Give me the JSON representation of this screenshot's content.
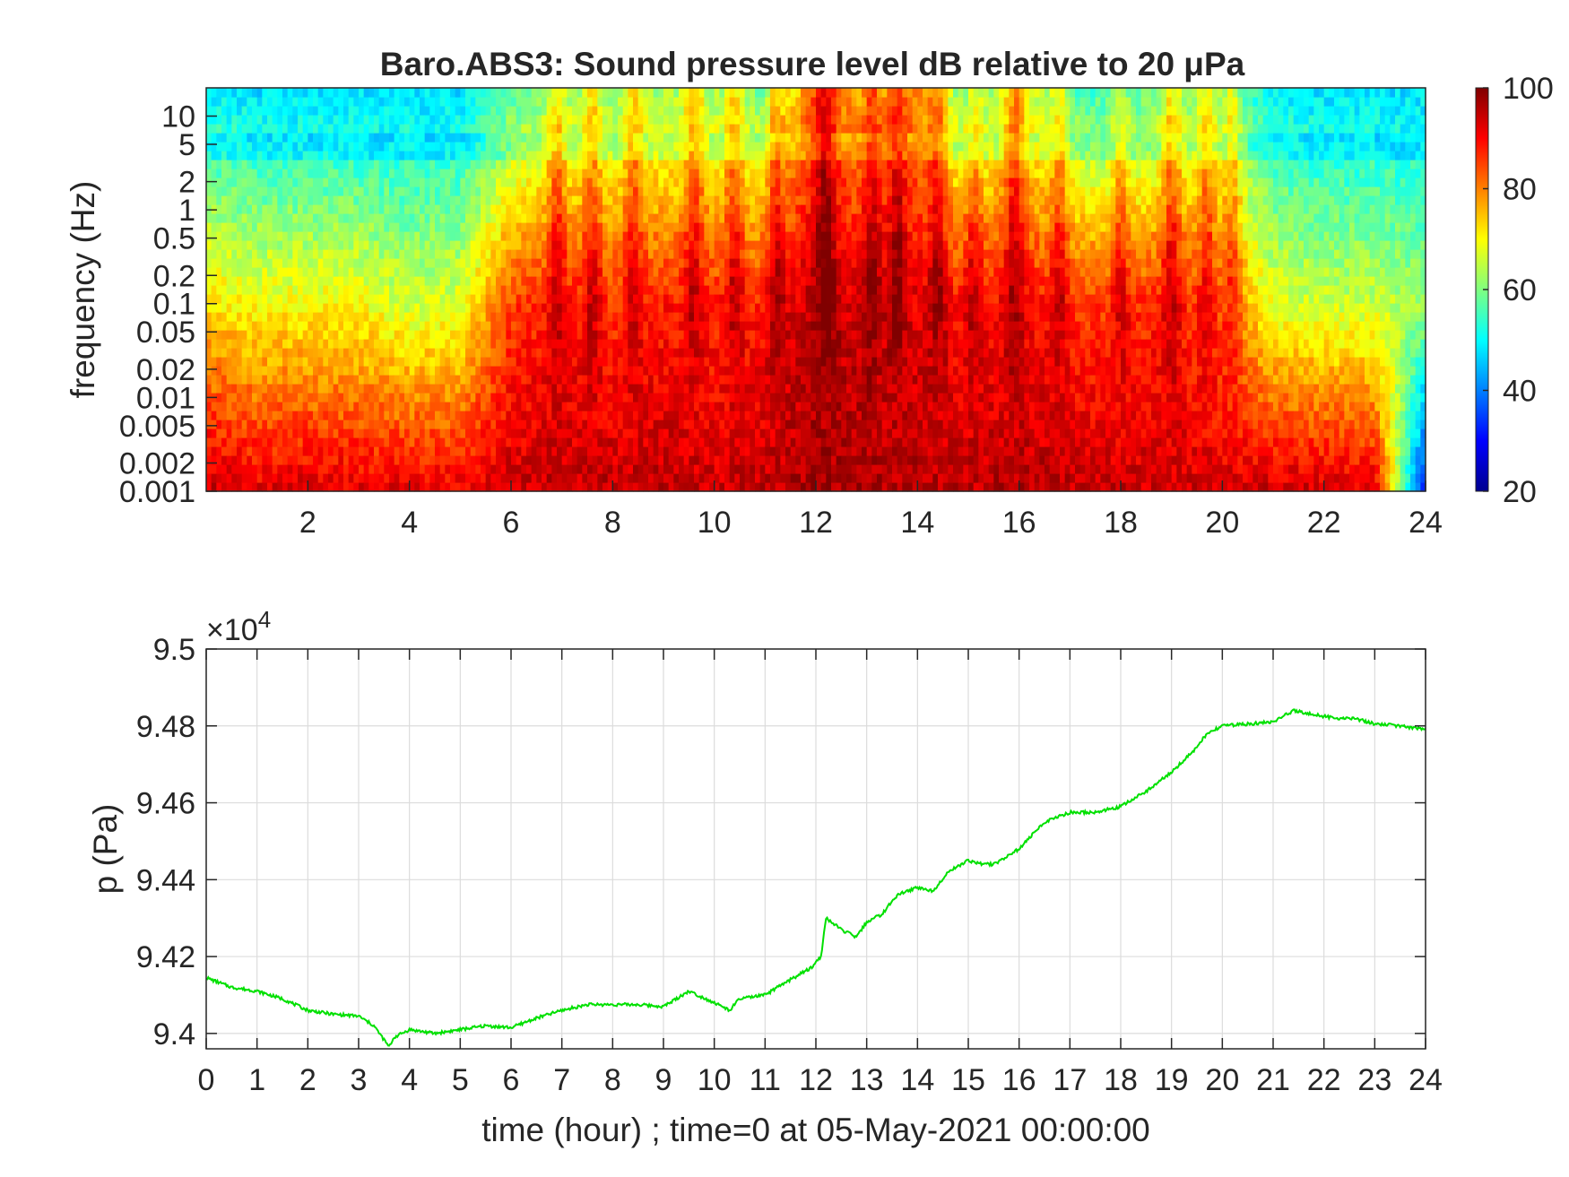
{
  "chart_data": [
    {
      "type": "heatmap",
      "title": "Baro.ABS3: Sound pressure level dB relative to 20 μPa",
      "xlabel": "",
      "ylabel": "frequency (Hz)",
      "x_scale": "linear",
      "y_scale": "log",
      "xlim": [
        0,
        24
      ],
      "ylim": [
        0.001,
        20
      ],
      "x_ticks": [
        2,
        4,
        6,
        8,
        10,
        12,
        14,
        16,
        18,
        20,
        22,
        24
      ],
      "x_tick_labels": [
        "2",
        "4",
        "6",
        "8",
        "10",
        "12",
        "14",
        "16",
        "18",
        "20",
        "22",
        "24"
      ],
      "y_ticks": [
        0.001,
        0.002,
        0.005,
        0.01,
        0.02,
        0.05,
        0.1,
        0.2,
        0.5,
        1,
        2,
        5,
        10
      ],
      "y_tick_labels": [
        "0.001",
        "0.002",
        "0.005",
        "0.01",
        "0.02",
        "0.05",
        "0.1",
        "0.2",
        "0.5",
        "1",
        "2",
        "5",
        "10"
      ],
      "colormap": "jet",
      "clim": [
        20,
        100
      ],
      "colorbar_ticks": [
        20,
        40,
        60,
        80,
        100
      ],
      "colorbar_tick_labels": [
        "20",
        "40",
        "60",
        "80",
        "100"
      ],
      "level_profile": {
        "x_hours": [
          0,
          1,
          2,
          3,
          4,
          5,
          6,
          7,
          8,
          9,
          10,
          11,
          12,
          13,
          14,
          15,
          16,
          17,
          18,
          19,
          20,
          21,
          22,
          23,
          24
        ],
        "dB_at_0.001Hz": [
          95,
          92,
          93,
          92,
          92,
          91,
          94,
          95,
          95,
          95,
          94,
          95,
          97,
          97,
          96,
          95,
          96,
          95,
          94,
          94,
          93,
          94,
          93,
          92,
          30
        ],
        "dB_at_0.1Hz": [
          72,
          70,
          70,
          70,
          66,
          68,
          85,
          88,
          86,
          88,
          87,
          88,
          96,
          92,
          92,
          88,
          90,
          86,
          85,
          88,
          82,
          68,
          66,
          66,
          62
        ],
        "dB_at_10Hz": [
          52,
          50,
          50,
          50,
          50,
          50,
          60,
          64,
          64,
          66,
          66,
          62,
          85,
          76,
          80,
          60,
          72,
          60,
          58,
          64,
          62,
          52,
          50,
          50,
          50
        ]
      },
      "peak_hours": [
        6.9,
        7.6,
        8.4,
        9.6,
        10.4,
        11.2,
        12.2,
        13.1,
        13.6,
        14.4,
        15.1,
        15.9,
        16.8,
        18.0,
        19.0,
        19.7,
        20.2
      ],
      "grid": false
    },
    {
      "type": "line",
      "title": "",
      "xlabel": "time (hour) ; time=0 at 05-May-2021 00:00:00",
      "ylabel": "p (Pa)",
      "y_exponent_label": "×10",
      "y_exponent_power": "4",
      "xlim": [
        0,
        24
      ],
      "ylim": [
        93960,
        95000
      ],
      "x_ticks": [
        0,
        1,
        2,
        3,
        4,
        5,
        6,
        7,
        8,
        9,
        10,
        11,
        12,
        13,
        14,
        15,
        16,
        17,
        18,
        19,
        20,
        21,
        22,
        23,
        24
      ],
      "x_tick_labels": [
        "0",
        "1",
        "2",
        "3",
        "4",
        "5",
        "6",
        "7",
        "8",
        "9",
        "10",
        "11",
        "12",
        "13",
        "14",
        "15",
        "16",
        "17",
        "18",
        "19",
        "20",
        "21",
        "22",
        "23",
        "24"
      ],
      "y_ticks": [
        94000,
        94200,
        94400,
        94600,
        94800,
        95000
      ],
      "y_tick_labels": [
        "9.4",
        "9.42",
        "9.44",
        "9.46",
        "9.48",
        "9.5"
      ],
      "grid": true,
      "series": [
        {
          "color": "#00e000",
          "x": [
            0,
            0.5,
            1,
            1.5,
            2,
            2.5,
            3,
            3.3,
            3.6,
            3.7,
            4,
            4.5,
            5,
            5.5,
            6,
            6.5,
            7,
            7.5,
            8,
            8.5,
            9,
            9.5,
            10,
            10.3,
            10.5,
            11,
            11.5,
            11.9,
            12.1,
            12.2,
            12.5,
            12.8,
            13,
            13.3,
            13.6,
            14,
            14.3,
            14.6,
            15,
            15.3,
            15.5,
            16,
            16.5,
            17,
            17.5,
            18,
            18.5,
            19,
            19.4,
            19.7,
            20,
            20.5,
            21,
            21.4,
            21.8,
            22.2,
            22.6,
            23,
            23.5,
            24
          ],
          "y": [
            94145,
            94120,
            94110,
            94090,
            94060,
            94050,
            94045,
            94020,
            93965,
            93990,
            94010,
            94000,
            94010,
            94020,
            94015,
            94040,
            94060,
            94075,
            94075,
            94075,
            94070,
            94110,
            94080,
            94060,
            94090,
            94100,
            94140,
            94170,
            94200,
            94300,
            94270,
            94250,
            94290,
            94310,
            94360,
            94380,
            94370,
            94420,
            94450,
            94440,
            94440,
            94480,
            94550,
            94575,
            94575,
            94590,
            94630,
            94680,
            94730,
            94780,
            94800,
            94805,
            94810,
            94840,
            94830,
            94820,
            94820,
            94805,
            94800,
            94790
          ]
        }
      ]
    }
  ]
}
